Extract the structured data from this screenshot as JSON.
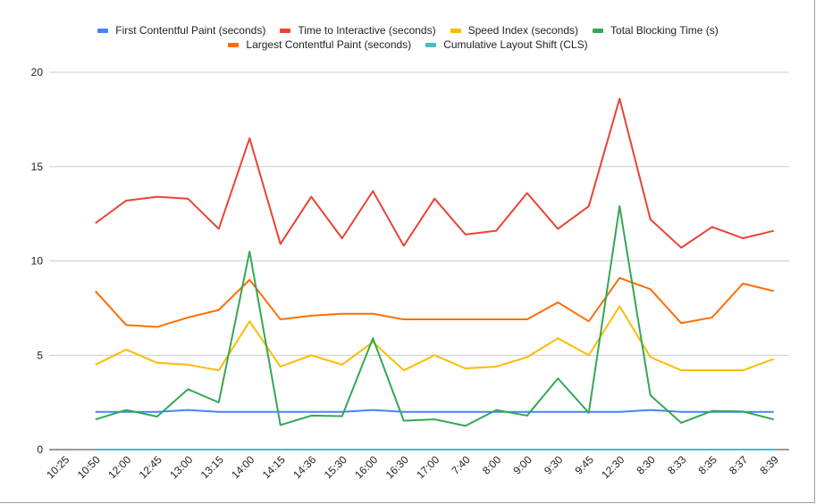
{
  "chart_data": {
    "type": "line",
    "title": "",
    "xlabel": "",
    "ylabel": "",
    "ylim": [
      0,
      20
    ],
    "yticks": [
      "0",
      "5",
      "10",
      "15",
      "20"
    ],
    "ytick_values": [
      0,
      5,
      10,
      15,
      20
    ],
    "grid": true,
    "legend_position": "top",
    "categories": [
      "10:25",
      "10:50",
      "12:00",
      "12:45",
      "13:00",
      "13:15",
      "14:00",
      "14:15",
      "14:36",
      "15:30",
      "16:00",
      "16:30",
      "17:00",
      "7:40",
      "8:00",
      "9:00",
      "9:30",
      "9:45",
      "12:30",
      "8:30",
      "8:33",
      "8:35",
      "8:37",
      "8:39"
    ],
    "series": [
      {
        "name": "First Contentful Paint (seconds)",
        "color": "#4285F4",
        "values": [
          null,
          2.0,
          2.0,
          2.0,
          2.1,
          2.0,
          2.0,
          2.0,
          2.0,
          2.0,
          2.1,
          2.0,
          2.0,
          2.0,
          2.0,
          2.0,
          2.0,
          2.0,
          2.0,
          2.1,
          2.0,
          2.0,
          2.0,
          2.0
        ]
      },
      {
        "name": "Time to Interactive (seconds)",
        "color": "#EA4335",
        "values": [
          null,
          12.0,
          13.2,
          13.4,
          13.3,
          11.7,
          16.5,
          10.9,
          13.4,
          11.2,
          13.7,
          10.8,
          13.3,
          11.4,
          11.6,
          13.6,
          11.7,
          12.9,
          18.6,
          12.2,
          10.7,
          11.8,
          11.2,
          11.6
        ]
      },
      {
        "name": "Speed Index (seconds)",
        "color": "#FBBC04",
        "values": [
          null,
          4.5,
          5.3,
          4.6,
          4.5,
          4.2,
          6.8,
          4.4,
          5.0,
          4.5,
          5.7,
          4.2,
          5.0,
          4.3,
          4.4,
          4.9,
          5.9,
          5.0,
          7.6,
          4.9,
          4.2,
          4.2,
          4.2,
          4.8
        ]
      },
      {
        "name": "Total Blocking Time (s)",
        "color": "#34A853",
        "values": [
          null,
          1.6,
          2.1,
          1.75,
          3.2,
          2.5,
          10.5,
          1.3,
          1.8,
          1.77,
          5.9,
          1.53,
          1.6,
          1.26,
          2.1,
          1.8,
          3.77,
          1.95,
          12.9,
          2.87,
          1.42,
          2.05,
          2.02,
          1.6
        ]
      },
      {
        "name": "Largest Contentful Paint (seconds)",
        "color": "#FF6D01",
        "values": [
          null,
          8.4,
          6.6,
          6.5,
          7.0,
          7.4,
          9.0,
          6.9,
          7.1,
          7.2,
          7.2,
          6.9,
          6.9,
          6.9,
          6.9,
          6.9,
          7.8,
          6.8,
          9.1,
          8.5,
          6.7,
          7.0,
          8.8,
          8.4
        ]
      },
      {
        "name": "Cumulative Layout Shift (CLS)",
        "color": "#46BDC6",
        "values": [
          null,
          0,
          0,
          0,
          0,
          0,
          0,
          0,
          0,
          0,
          0,
          0,
          0,
          0,
          0,
          0,
          0,
          0,
          0,
          0,
          0,
          0,
          0,
          0
        ]
      }
    ],
    "legend_rows": [
      [
        0,
        1,
        2,
        3
      ],
      [
        4,
        5
      ]
    ]
  }
}
